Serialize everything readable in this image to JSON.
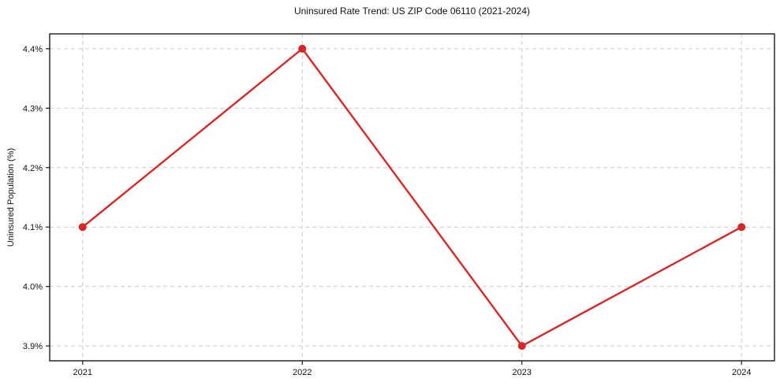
{
  "title": "Uninsured Rate Trend: US ZIP Code 06110 (2021-2024)",
  "chart_data": {
    "type": "line",
    "title": "Uninsured Rate Trend: US ZIP Code 06110 (2021-2024)",
    "xlabel": "",
    "ylabel": "Uninsured Population (%)",
    "categories": [
      "2021",
      "2022",
      "2023",
      "2024"
    ],
    "x": [
      2021,
      2022,
      2023,
      2024
    ],
    "values": [
      4.1,
      4.4,
      3.9,
      4.1
    ],
    "ytick_values": [
      3.9,
      4.0,
      4.1,
      4.2,
      4.3,
      4.4
    ],
    "ytick_labels": [
      "3.9%",
      "4.0%",
      "4.1%",
      "4.2%",
      "4.3%",
      "4.4%"
    ],
    "xlim": [
      2020.85,
      2024.15
    ],
    "ylim": [
      3.875,
      4.425
    ],
    "grid": true,
    "legend": "none",
    "colors": {
      "line": "#d62728",
      "marker": "#d62728",
      "grid": "#cccccc",
      "spine": "#1a1a1a",
      "text": "#111111",
      "background": "#ffffff"
    }
  }
}
